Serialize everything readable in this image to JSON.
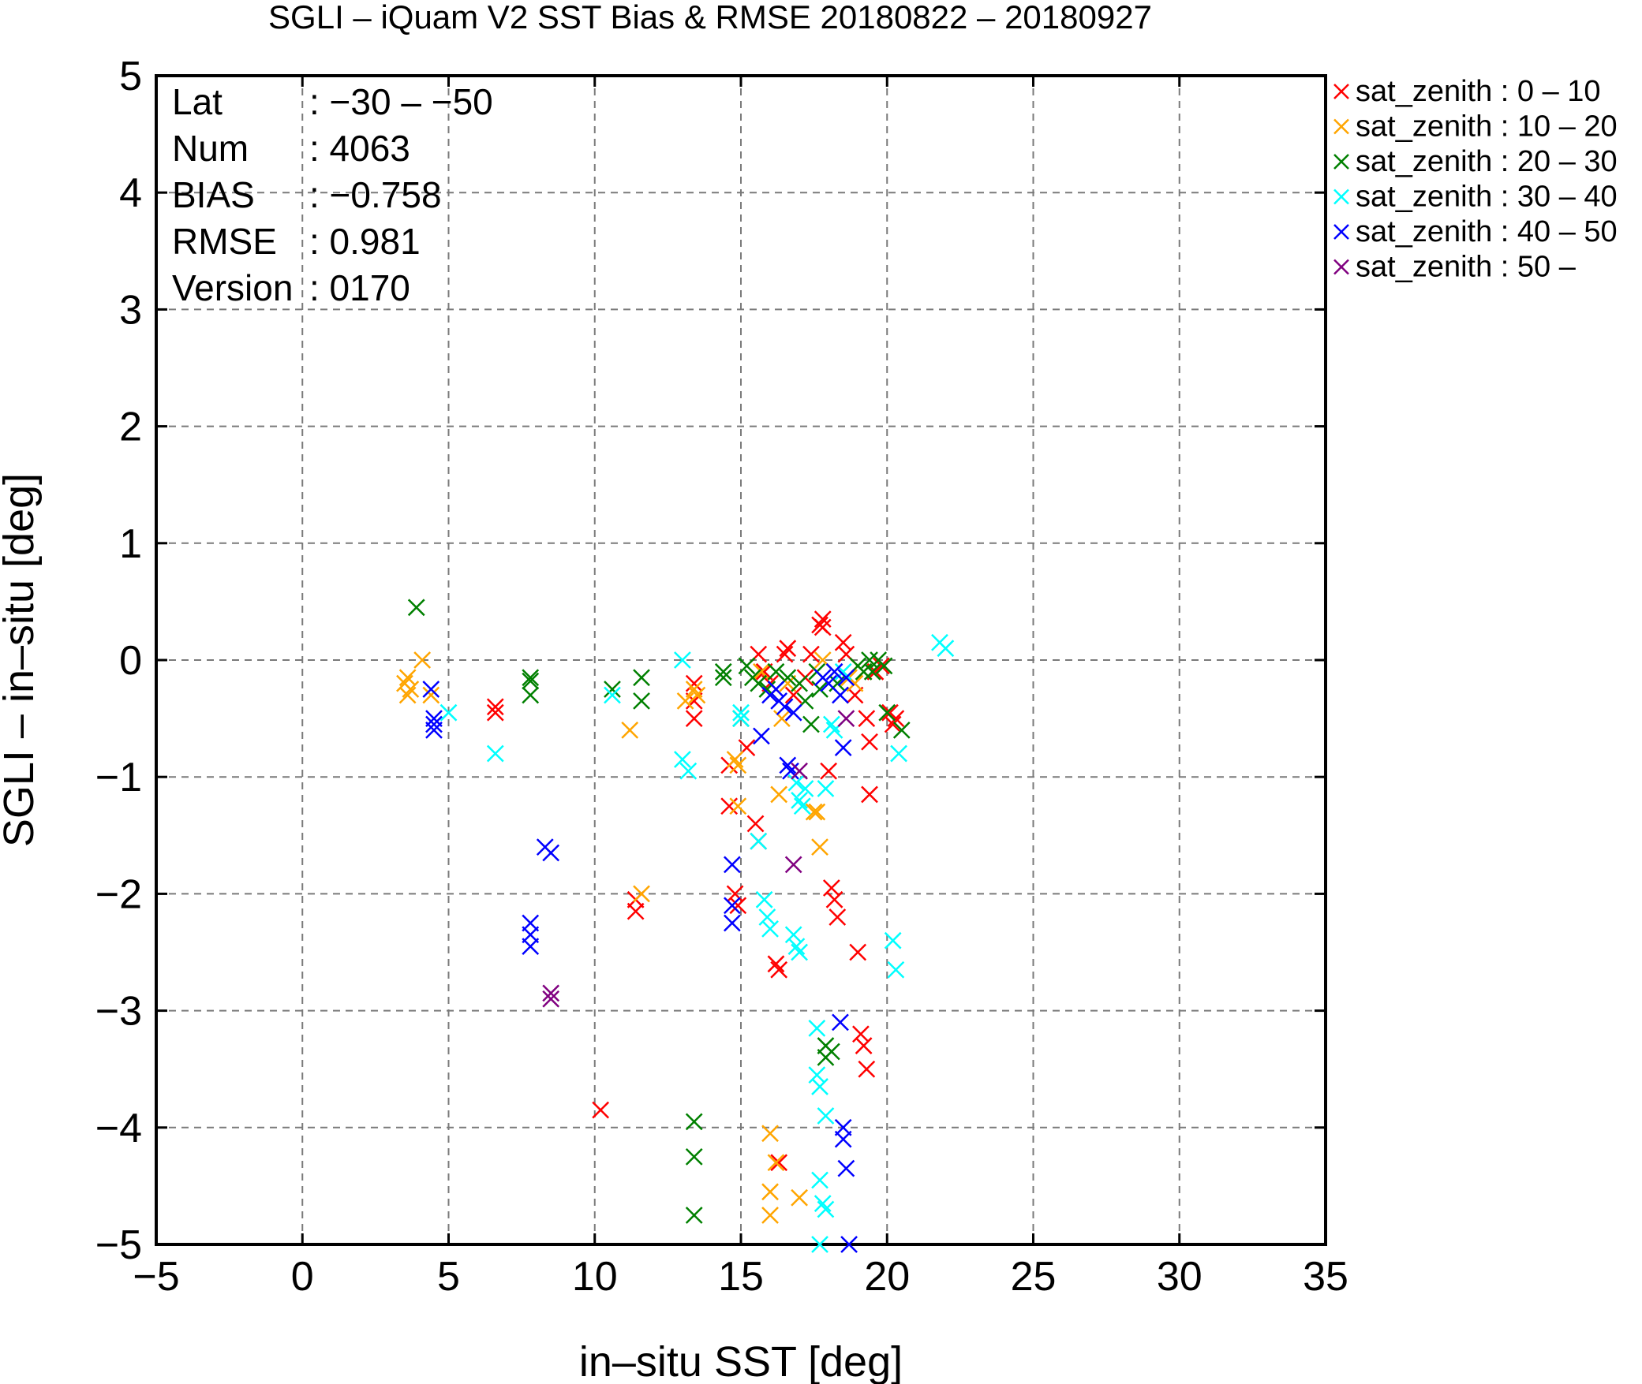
{
  "chart_data": {
    "type": "scatter",
    "title": "SGLI – iQuam V2 SST Bias & RMSE 20180822 – 20180927",
    "xlabel": "in–situ SST [deg]",
    "ylabel": "SGLI – in–situ [deg]",
    "xlim": [
      -5,
      35
    ],
    "ylim": [
      -5,
      5
    ],
    "xticks": [
      -5,
      0,
      5,
      10,
      15,
      20,
      25,
      30,
      35
    ],
    "yticks": [
      -5,
      -4,
      -3,
      -2,
      -1,
      0,
      1,
      2,
      3,
      4,
      5
    ],
    "xtick_labels": [
      "−5",
      "0",
      "5",
      "10",
      "15",
      "20",
      "25",
      "30",
      "35"
    ],
    "ytick_labels": [
      "−5",
      "−4",
      "−3",
      "−2",
      "−1",
      "0",
      "1",
      "2",
      "3",
      "4",
      "5"
    ],
    "grid": true,
    "legend_position": "outside-top-right",
    "stats": [
      {
        "key": "Lat",
        "value": ": −30 – −50"
      },
      {
        "key": "Num",
        "value": ": 4063"
      },
      {
        "key": "BIAS",
        "value": ": −0.758"
      },
      {
        "key": "RMSE",
        "value": ": 0.981"
      },
      {
        "key": "Version",
        "value": ": 0170"
      }
    ],
    "series": [
      {
        "name": "sat_zenith :  0 – 10",
        "color": "#ff0000",
        "points": [
          [
            6.6,
            -0.4
          ],
          [
            6.6,
            -0.45
          ],
          [
            10.2,
            -3.85
          ],
          [
            11.4,
            -2.05
          ],
          [
            11.4,
            -2.15
          ],
          [
            13.4,
            -0.2
          ],
          [
            13.4,
            -0.35
          ],
          [
            13.4,
            -0.5
          ],
          [
            14.6,
            -0.9
          ],
          [
            14.6,
            -1.25
          ],
          [
            14.8,
            -2.0
          ],
          [
            14.9,
            -2.1
          ],
          [
            15.2,
            -0.75
          ],
          [
            15.5,
            -1.4
          ],
          [
            15.6,
            -1.55
          ],
          [
            15.6,
            0.05
          ],
          [
            15.8,
            -0.1
          ],
          [
            16.0,
            -0.2
          ],
          [
            16.2,
            -2.6
          ],
          [
            16.3,
            -2.65
          ],
          [
            16.3,
            -4.3
          ],
          [
            16.5,
            0.05
          ],
          [
            16.6,
            0.1
          ],
          [
            16.8,
            -0.3
          ],
          [
            17.2,
            -0.15
          ],
          [
            17.4,
            0.05
          ],
          [
            17.7,
            0.3
          ],
          [
            17.8,
            0.35
          ],
          [
            17.8,
            0.28
          ],
          [
            18.0,
            -0.95
          ],
          [
            18.1,
            -1.95
          ],
          [
            18.2,
            -2.05
          ],
          [
            18.3,
            -2.2
          ],
          [
            18.5,
            0.15
          ],
          [
            18.6,
            0.05
          ],
          [
            18.9,
            -0.3
          ],
          [
            19.0,
            -2.5
          ],
          [
            19.1,
            -3.2
          ],
          [
            19.2,
            -3.3
          ],
          [
            19.3,
            -3.5
          ],
          [
            19.3,
            -0.5
          ],
          [
            19.4,
            -0.7
          ],
          [
            19.4,
            -1.15
          ],
          [
            19.6,
            -0.1
          ],
          [
            19.8,
            -0.05
          ],
          [
            20.1,
            -0.45
          ],
          [
            20.2,
            -0.55
          ],
          [
            20.3,
            -0.5
          ]
        ]
      },
      {
        "name": "sat_zenith : 10 – 20",
        "color": "#ffa500",
        "points": [
          [
            3.5,
            -0.2
          ],
          [
            3.6,
            -0.15
          ],
          [
            3.6,
            -0.3
          ],
          [
            3.7,
            -0.25
          ],
          [
            4.1,
            0.0
          ],
          [
            4.4,
            -0.3
          ],
          [
            11.2,
            -0.6
          ],
          [
            11.6,
            -2.0
          ],
          [
            13.1,
            -0.35
          ],
          [
            13.4,
            -0.25
          ],
          [
            13.5,
            -0.3
          ],
          [
            14.8,
            -0.85
          ],
          [
            14.9,
            -0.9
          ],
          [
            14.9,
            -1.25
          ],
          [
            15.7,
            -0.1
          ],
          [
            16.0,
            -4.05
          ],
          [
            16.0,
            -4.55
          ],
          [
            16.0,
            -4.75
          ],
          [
            16.2,
            -4.3
          ],
          [
            16.3,
            -1.15
          ],
          [
            16.4,
            -0.5
          ],
          [
            16.6,
            -0.2
          ],
          [
            17.0,
            -4.6
          ],
          [
            17.5,
            -1.3
          ],
          [
            17.6,
            -1.3
          ],
          [
            17.7,
            -1.6
          ],
          [
            17.8,
            0.0
          ],
          [
            18.7,
            -0.15
          ],
          [
            18.9,
            -0.2
          ],
          [
            19.2,
            -0.1
          ]
        ]
      },
      {
        "name": "sat_zenith : 20 – 30",
        "color": "#008000",
        "points": [
          [
            3.9,
            0.45
          ],
          [
            7.8,
            -0.15
          ],
          [
            7.8,
            -0.18
          ],
          [
            7.8,
            -0.3
          ],
          [
            10.6,
            -0.25
          ],
          [
            11.6,
            -0.15
          ],
          [
            11.6,
            -0.35
          ],
          [
            13.4,
            -3.95
          ],
          [
            13.4,
            -4.25
          ],
          [
            13.4,
            -4.75
          ],
          [
            14.4,
            -0.1
          ],
          [
            14.4,
            -0.15
          ],
          [
            15.0,
            -0.5
          ],
          [
            15.2,
            -0.05
          ],
          [
            15.4,
            -0.15
          ],
          [
            15.6,
            -0.2
          ],
          [
            15.9,
            -0.25
          ],
          [
            16.2,
            -0.1
          ],
          [
            16.6,
            -0.15
          ],
          [
            17.0,
            -0.2
          ],
          [
            17.2,
            -0.35
          ],
          [
            17.4,
            -0.55
          ],
          [
            17.6,
            -0.1
          ],
          [
            17.7,
            -0.25
          ],
          [
            17.9,
            -3.3
          ],
          [
            17.9,
            -3.4
          ],
          [
            18.1,
            -3.35
          ],
          [
            18.3,
            -0.2
          ],
          [
            19.0,
            -0.05
          ],
          [
            19.2,
            -0.1
          ],
          [
            19.4,
            0.0
          ],
          [
            19.5,
            -0.1
          ],
          [
            19.7,
            0.0
          ],
          [
            19.9,
            -0.05
          ],
          [
            20.0,
            -0.45
          ],
          [
            20.5,
            -0.6
          ]
        ]
      },
      {
        "name": "sat_zenith : 30 – 40",
        "color": "#00ffff",
        "points": [
          [
            5.0,
            -0.45
          ],
          [
            6.6,
            -0.8
          ],
          [
            10.6,
            -0.3
          ],
          [
            13.0,
            0.0
          ],
          [
            13.0,
            -0.85
          ],
          [
            13.2,
            -0.95
          ],
          [
            15.0,
            -0.45
          ],
          [
            15.0,
            -0.5
          ],
          [
            15.6,
            -1.55
          ],
          [
            15.8,
            -2.05
          ],
          [
            15.9,
            -2.2
          ],
          [
            16.0,
            -2.3
          ],
          [
            16.8,
            -2.35
          ],
          [
            16.9,
            -2.45
          ],
          [
            17.0,
            -2.5
          ],
          [
            16.9,
            -1.05
          ],
          [
            17.0,
            -1.2
          ],
          [
            17.1,
            -1.25
          ],
          [
            17.2,
            -1.1
          ],
          [
            17.6,
            -3.15
          ],
          [
            17.6,
            -3.55
          ],
          [
            17.7,
            -3.65
          ],
          [
            17.7,
            -4.45
          ],
          [
            17.8,
            -4.65
          ],
          [
            17.9,
            -4.7
          ],
          [
            17.9,
            -3.9
          ],
          [
            17.7,
            -5.0
          ],
          [
            17.9,
            -1.1
          ],
          [
            18.1,
            -0.55
          ],
          [
            18.2,
            -0.6
          ],
          [
            18.5,
            -0.1
          ],
          [
            20.2,
            -2.4
          ],
          [
            20.3,
            -2.65
          ],
          [
            20.4,
            -0.8
          ],
          [
            21.8,
            0.15
          ],
          [
            22.0,
            0.1
          ]
        ]
      },
      {
        "name": "sat_zenith : 40 – 50",
        "color": "#0000ff",
        "points": [
          [
            4.4,
            -0.25
          ],
          [
            4.5,
            -0.5
          ],
          [
            4.5,
            -0.55
          ],
          [
            4.5,
            -0.6
          ],
          [
            7.8,
            -2.25
          ],
          [
            7.8,
            -2.35
          ],
          [
            7.8,
            -2.45
          ],
          [
            8.3,
            -1.6
          ],
          [
            8.5,
            -1.65
          ],
          [
            14.7,
            -1.75
          ],
          [
            14.7,
            -2.1
          ],
          [
            14.7,
            -2.25
          ],
          [
            15.7,
            -0.65
          ],
          [
            16.0,
            -0.3
          ],
          [
            16.2,
            -0.25
          ],
          [
            16.3,
            -0.35
          ],
          [
            16.5,
            -0.4
          ],
          [
            16.6,
            -0.9
          ],
          [
            16.7,
            -0.95
          ],
          [
            16.8,
            -0.45
          ],
          [
            17.8,
            -0.15
          ],
          [
            18.0,
            -0.2
          ],
          [
            18.2,
            -0.1
          ],
          [
            18.4,
            -0.3
          ],
          [
            18.4,
            -3.1
          ],
          [
            18.5,
            -4.0
          ],
          [
            18.5,
            -4.1
          ],
          [
            18.6,
            -4.35
          ],
          [
            18.5,
            -0.75
          ],
          [
            18.6,
            -0.15
          ],
          [
            18.7,
            -5.0
          ]
        ]
      },
      {
        "name": "sat_zenith : 50 –",
        "color": "#800080",
        "points": [
          [
            8.5,
            -2.85
          ],
          [
            8.5,
            -2.9
          ],
          [
            16.8,
            -1.75
          ],
          [
            17.0,
            -0.95
          ],
          [
            18.6,
            -0.5
          ]
        ]
      }
    ]
  }
}
